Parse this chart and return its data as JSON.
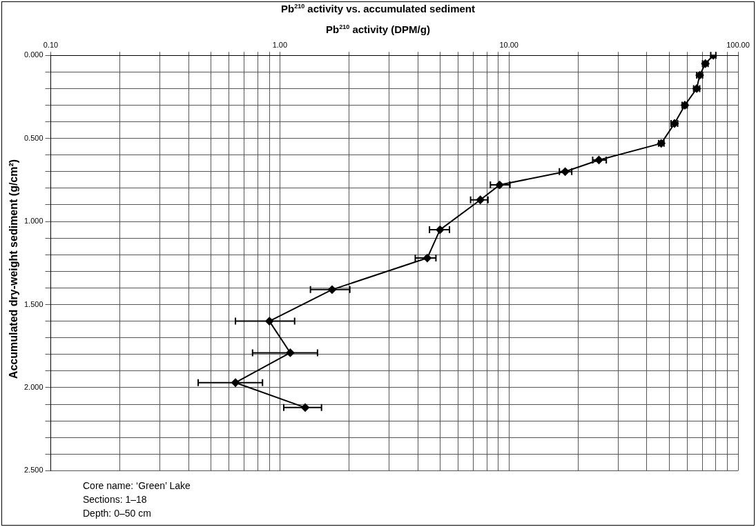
{
  "chart_data": {
    "type": "line",
    "title": "Pb$^{210}$ activity vs. accumulated sediment",
    "xlabel": "Pb$^{210}$ activity (DPM/g)",
    "ylabel": "Accumulated dry-weight sediment (g/cm²)",
    "annotations": [
      "Core name:  ‘Green’ Lake",
      "Sections:  1–18",
      "Depth:  0–50 cm"
    ],
    "xlim": [
      0.1,
      100
    ],
    "xticks": [
      {
        "value": 0.1,
        "label": "0.10"
      },
      {
        "value": 0.2,
        "label": null
      },
      {
        "value": 0.3,
        "label": null
      },
      {
        "value": 0.4,
        "label": null
      },
      {
        "value": 0.5,
        "label": null
      },
      {
        "value": 0.6,
        "label": null
      },
      {
        "value": 0.7,
        "label": null
      },
      {
        "value": 0.8,
        "label": null
      },
      {
        "value": 0.9,
        "label": null
      },
      {
        "value": 1,
        "label": "1.00"
      },
      {
        "value": 2,
        "label": null
      },
      {
        "value": 3,
        "label": null
      },
      {
        "value": 4,
        "label": null
      },
      {
        "value": 5,
        "label": null
      },
      {
        "value": 6,
        "label": null
      },
      {
        "value": 7,
        "label": null
      },
      {
        "value": 8,
        "label": null
      },
      {
        "value": 9,
        "label": null
      },
      {
        "value": 10,
        "label": "10.00"
      },
      {
        "value": 20,
        "label": null
      },
      {
        "value": 30,
        "label": null
      },
      {
        "value": 40,
        "label": null
      },
      {
        "value": 50,
        "label": null
      },
      {
        "value": 60,
        "label": null
      },
      {
        "value": 70,
        "label": null
      },
      {
        "value": 80,
        "label": null
      },
      {
        "value": 90,
        "label": null
      },
      {
        "value": 100,
        "label": "100.00"
      }
    ],
    "ylim": [
      2.5,
      0
    ],
    "yticks": [
      {
        "value": 0,
        "label": "0.000"
      },
      {
        "value": 0.1,
        "label": null
      },
      {
        "value": 0.2,
        "label": null
      },
      {
        "value": 0.3,
        "label": null
      },
      {
        "value": 0.4,
        "label": null
      },
      {
        "value": 0.5,
        "label": "0.500"
      },
      {
        "value": 0.6,
        "label": null
      },
      {
        "value": 0.7,
        "label": null
      },
      {
        "value": 0.8,
        "label": null
      },
      {
        "value": 0.9,
        "label": null
      },
      {
        "value": 1,
        "label": "1.000"
      },
      {
        "value": 1.1,
        "label": null
      },
      {
        "value": 1.2,
        "label": null
      },
      {
        "value": 1.3,
        "label": null
      },
      {
        "value": 1.4,
        "label": null
      },
      {
        "value": 1.5,
        "label": "1.500"
      },
      {
        "value": 1.6,
        "label": null
      },
      {
        "value": 1.7,
        "label": null
      },
      {
        "value": 1.8,
        "label": null
      },
      {
        "value": 1.9,
        "label": null
      },
      {
        "value": 2,
        "label": "2.000"
      },
      {
        "value": 2.1,
        "label": null
      },
      {
        "value": 2.2,
        "label": null
      },
      {
        "value": 2.3,
        "label": null
      },
      {
        "value": 2.4,
        "label": null
      },
      {
        "value": 2.5,
        "label": "2.500"
      }
    ],
    "log": "x",
    "grid": true,
    "marker": "diamond",
    "line_style": "solid",
    "series": [
      {
        "color": "#000000",
        "x": [
          78,
          72,
          68,
          66,
          58.6,
          52.8,
          46.2,
          24.7,
          17.6,
          9.1,
          7.5,
          5.0,
          4.4,
          1.69,
          0.9,
          1.11,
          0.64,
          1.29
        ],
        "values": [
          0,
          0.05,
          0.12,
          0.2,
          0.3,
          0.41,
          0.53,
          0.63,
          0.7,
          0.78,
          0.87,
          1.05,
          1.22,
          1.41,
          1.6,
          1.79,
          1.97,
          2.12
        ],
        "xerrors": [
          [
            76,
            80
          ],
          [
            70,
            74
          ],
          [
            66,
            70
          ],
          [
            64,
            68
          ],
          [
            57,
            60
          ],
          [
            51,
            54.5
          ],
          [
            45,
            47.5
          ],
          [
            23.2,
            26.6
          ],
          [
            16.6,
            18.8
          ],
          [
            8.3,
            10.1
          ],
          [
            6.8,
            8.1
          ],
          [
            4.5,
            5.5
          ],
          [
            3.9,
            4.8
          ],
          [
            1.36,
            2.02
          ],
          [
            0.64,
            1.16
          ],
          [
            0.76,
            1.46
          ],
          [
            0.44,
            0.84
          ],
          [
            1.04,
            1.52
          ]
        ]
      }
    ]
  }
}
